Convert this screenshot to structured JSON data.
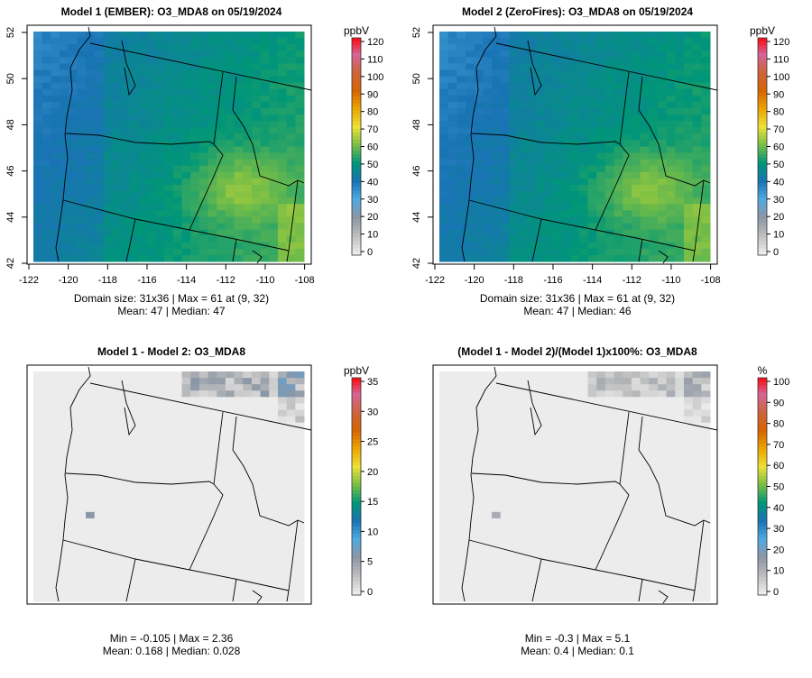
{
  "chart_data": [
    {
      "type": "heatmap",
      "title": "Model 1 (EMBER): O3_MDA8 on 05/19/2024",
      "x_ticks": [
        "-122",
        "-120",
        "-118",
        "-116",
        "-114",
        "-112",
        "-110",
        "-108"
      ],
      "y_ticks": [
        "42",
        "44",
        "46",
        "48",
        "50",
        "52"
      ],
      "xlim": [
        -122,
        -108
      ],
      "ylim": [
        42,
        52
      ],
      "legend_unit": "ppbV",
      "legend_ticks": [
        "0",
        "10",
        "20",
        "30",
        "40",
        "50",
        "60",
        "70",
        "80",
        "90",
        "100",
        "110",
        "120"
      ],
      "legend_range": [
        0,
        120
      ],
      "stats_line1": "Domain size: 31x36 | Max = 61 at (9, 32)",
      "stats_line2": "Mean: 47 |  Median: 47",
      "mean": 47,
      "max": 61
    },
    {
      "type": "heatmap",
      "title": "Model 2 (ZeroFires): O3_MDA8 on 05/19/2024",
      "x_ticks": [
        "-122",
        "-120",
        "-118",
        "-116",
        "-114",
        "-112",
        "-110",
        "-108"
      ],
      "y_ticks": [
        "42",
        "44",
        "46",
        "48",
        "50",
        "52"
      ],
      "xlim": [
        -122,
        -108
      ],
      "ylim": [
        42,
        52
      ],
      "legend_unit": "ppbV",
      "legend_ticks": [
        "0",
        "10",
        "20",
        "30",
        "40",
        "50",
        "60",
        "70",
        "80",
        "90",
        "100",
        "110",
        "120"
      ],
      "legend_range": [
        0,
        120
      ],
      "stats_line1": "Domain size: 31x36 | Max = 61 at (9, 32)",
      "stats_line2": "Mean: 47 |  Median: 46",
      "mean": 47,
      "max": 61
    },
    {
      "type": "heatmap",
      "title": "Model 1 - Model 2: O3_MDA8",
      "legend_unit": "ppbV",
      "legend_ticks": [
        "0",
        "5",
        "10",
        "15",
        "20",
        "25",
        "30",
        "35"
      ],
      "legend_range": [
        0,
        35
      ],
      "stats_line1": "Min = -0.105 | Max = 2.36",
      "stats_line2": "Mean: 0.168 |  Median: 0.028",
      "mean": 0.168,
      "max": 2.36
    },
    {
      "type": "heatmap",
      "title": "(Model 1 - Model 2)/(Model 1)x100%: O3_MDA8",
      "legend_unit": "%",
      "legend_ticks": [
        "0",
        "10",
        "20",
        "30",
        "40",
        "50",
        "60",
        "70",
        "80",
        "90",
        "100"
      ],
      "legend_range": [
        0,
        100
      ],
      "stats_line1": "Min = -0.3 | Max = 5.1",
      "stats_line2": "Mean: 0.4 |  Median: 0.1",
      "mean": 0.4,
      "max": 5.1
    }
  ]
}
